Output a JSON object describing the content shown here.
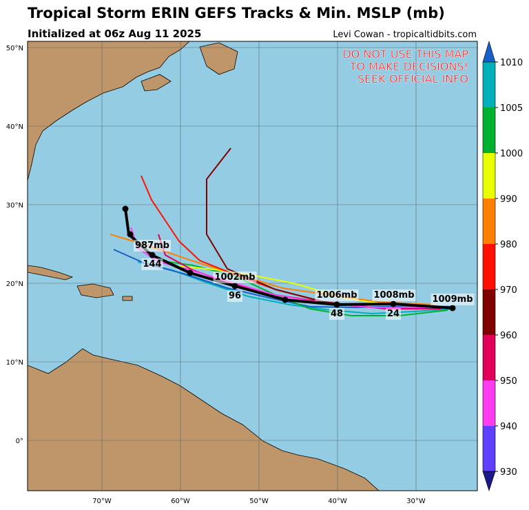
{
  "header": {
    "title": "Tropical Storm ERIN GEFS Tracks & Min. MSLP (mb)",
    "subtitle": "Initialized at 06z Aug 11 2025",
    "credit": "Levi Cowan - tropicaltidbits.com"
  },
  "warning": [
    "DO NOT USE THIS MAP",
    "TO MAKE DECISIONS!",
    "SEEK OFFICIAL INFO"
  ],
  "map": {
    "lat_labels": [
      "50°N",
      "40°N",
      "30°N",
      "20°N",
      "10°N",
      "0°"
    ],
    "lon_labels": [
      "70°W",
      "60°W",
      "50°W",
      "40°W",
      "30°W"
    ],
    "pressure_labels": [
      "1009mb",
      "1008mb",
      "1006mb",
      "1002mb",
      "987mb"
    ],
    "hour_labels": [
      "24",
      "48",
      "96",
      "144"
    ]
  },
  "colorbar": {
    "labels": [
      "1010",
      "1005",
      "1000",
      "990",
      "980",
      "970",
      "960",
      "950",
      "940",
      "930"
    ]
  }
}
